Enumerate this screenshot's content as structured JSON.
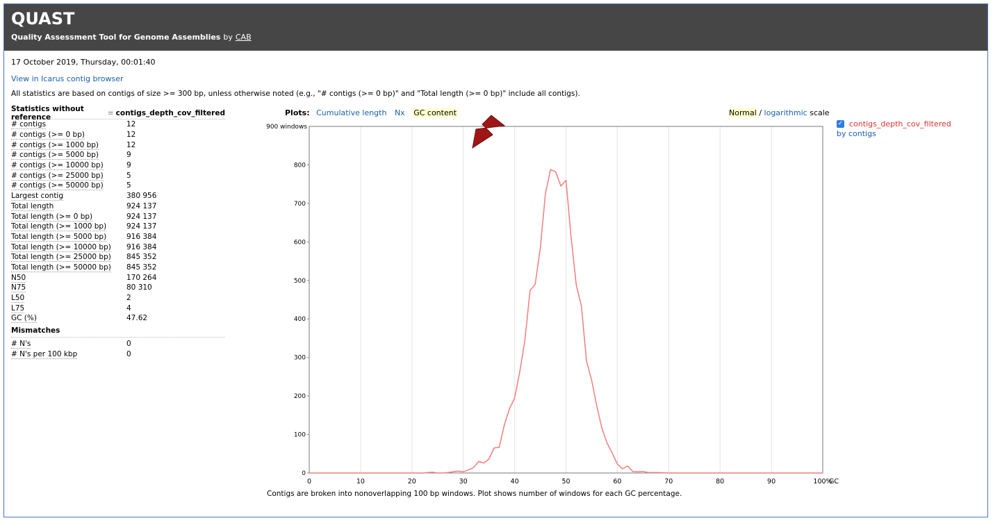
{
  "header": {
    "title": "QUAST",
    "subtitle": "Quality Assessment Tool for Genome Assemblies",
    "by": "by",
    "author": "CAB"
  },
  "report_date": "17 October 2019, Thursday, 00:01:40",
  "icarus_link": "View in Icarus contig browser",
  "stats_note": "All statistics are based on contigs of size >= 300 bp, unless otherwise noted (e.g., \"# contigs (>= 0 bp)\" and \"Total length (>= 0 bp)\" include all contigs).",
  "stats": {
    "header": "Statistics without reference",
    "assembly": "contigs_depth_cov_filtered",
    "rows": [
      {
        "label": "# contigs",
        "value": "12"
      },
      {
        "label": "# contigs (>= 0 bp)",
        "value": "12"
      },
      {
        "label": "# contigs (>= 1000 bp)",
        "value": "12"
      },
      {
        "label": "# contigs (>= 5000 bp)",
        "value": "9"
      },
      {
        "label": "# contigs (>= 10000 bp)",
        "value": "9"
      },
      {
        "label": "# contigs (>= 25000 bp)",
        "value": "5"
      },
      {
        "label": "# contigs (>= 50000 bp)",
        "value": "5"
      },
      {
        "label": "Largest contig",
        "value": "380 956"
      },
      {
        "label": "Total length",
        "value": "924 137"
      },
      {
        "label": "Total length (>= 0 bp)",
        "value": "924 137"
      },
      {
        "label": "Total length (>= 1000 bp)",
        "value": "924 137"
      },
      {
        "label": "Total length (>= 5000 bp)",
        "value": "916 384"
      },
      {
        "label": "Total length (>= 10000 bp)",
        "value": "916 384"
      },
      {
        "label": "Total length (>= 25000 bp)",
        "value": "845 352"
      },
      {
        "label": "Total length (>= 50000 bp)",
        "value": "845 352"
      },
      {
        "label": "N50",
        "value": "170 264"
      },
      {
        "label": "N75",
        "value": "80 310"
      },
      {
        "label": "L50",
        "value": "2"
      },
      {
        "label": "L75",
        "value": "4"
      },
      {
        "label": "GC (%)",
        "value": "47.62"
      }
    ],
    "mismatches_title": "Mismatches",
    "mismatch_rows": [
      {
        "label": "# N's",
        "value": "0"
      },
      {
        "label": "# N's per 100 kbp",
        "value": "0"
      }
    ]
  },
  "plots": {
    "label": "Plots:",
    "tabs": [
      "Cumulative length",
      "Nx",
      "GC content"
    ],
    "active_tab": "GC content",
    "scale_normal": "Normal",
    "scale_sep": "/",
    "scale_log": "logarithmic",
    "scale_suffix": "scale"
  },
  "legend": {
    "checked": true,
    "series_name": "contigs_depth_cov_filtered",
    "sublabel": "by contigs"
  },
  "caption": "Contigs are broken into nonoverlapping 100 bp windows. Plot shows number of windows for each GC percentage.",
  "colors": {
    "series": "#f47c7c",
    "header_bg": "#464646",
    "link": "#1a5fa8",
    "arrow": "#a01616"
  },
  "chart_data": {
    "type": "line",
    "ylabel": "windows",
    "xlabel": "GC",
    "xlim": [
      0,
      100
    ],
    "ylim": [
      0,
      900
    ],
    "x_ticks": [
      "0",
      "10",
      "20",
      "30",
      "40",
      "50",
      "60",
      "70",
      "80",
      "90",
      "100%"
    ],
    "y_ticks": [
      "0",
      "100",
      "200",
      "300",
      "400",
      "500",
      "600",
      "700",
      "800",
      "900"
    ],
    "grid": true,
    "series": [
      {
        "name": "contigs_depth_cov_filtered",
        "x": [
          0,
          5,
          10,
          15,
          20,
          22,
          24,
          25,
          26,
          27,
          28,
          29,
          30,
          31,
          32,
          33,
          34,
          35,
          36,
          37,
          38,
          39,
          40,
          41,
          42,
          43,
          44,
          45,
          46,
          47,
          48,
          49,
          50,
          51,
          52,
          53,
          54,
          55,
          56,
          57,
          58,
          59,
          60,
          61,
          62,
          63,
          64,
          65,
          66,
          67,
          68,
          70,
          75,
          80,
          90,
          100
        ],
        "y": [
          0,
          0,
          0,
          0,
          0,
          0,
          2,
          0,
          0,
          1,
          3,
          5,
          3,
          8,
          14,
          30,
          26,
          36,
          65,
          67,
          125,
          167,
          195,
          263,
          345,
          474,
          490,
          585,
          725,
          788,
          782,
          745,
          760,
          612,
          488,
          433,
          290,
          240,
          174,
          116,
          78,
          52,
          23,
          11,
          18,
          4,
          3,
          4,
          1,
          1,
          1,
          0,
          0,
          0,
          0,
          0
        ]
      }
    ]
  }
}
